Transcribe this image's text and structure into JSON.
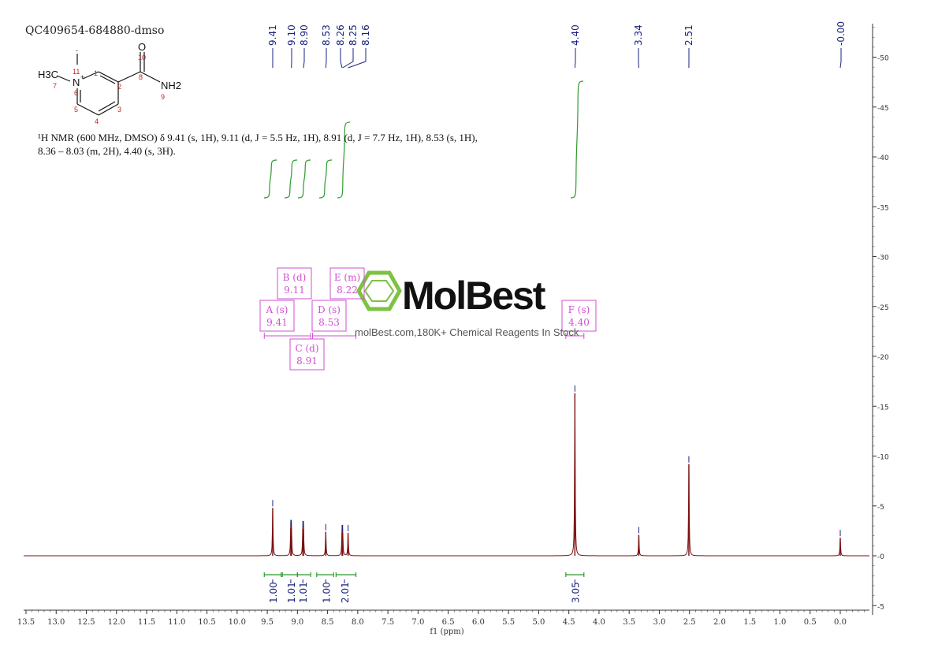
{
  "sample_id": "QC409654-684880-dmso",
  "nmr_description": "¹H NMR (600 MHz, DMSO) δ 9.41 (s, 1H), 9.11 (d, J = 5.5 Hz, 1H), 8.91 (d, J = 7.7 Hz, 1H), 8.53 (s, 1H), 8.36 – 8.03 (m, 2H), 4.40 (s, 3H).",
  "watermark": {
    "brand": "MolBest",
    "tagline": "molBest.com,180K+ Chemical Reagents In Stock"
  },
  "structure": {
    "atoms": [
      "H3C",
      "N",
      "+",
      "I",
      "-",
      "O",
      "NH2"
    ],
    "atom_numbers": [
      "1",
      "2",
      "3",
      "4",
      "5",
      "6",
      "7",
      "8",
      "9",
      "10",
      "11"
    ]
  },
  "colors": {
    "spectrum": "#7b1010",
    "peak_labels": "#1a237e",
    "integral": "#2e9b2e",
    "multiplet_box": "#d24fd2",
    "axis": "#333333",
    "atom_number": "#cc2222"
  },
  "chart_data": {
    "type": "line",
    "xlabel": "f1 (ppm)",
    "x_reversed": true,
    "xlim": [
      13.5,
      -0.5
    ],
    "ylim": [
      -5,
      53
    ],
    "x_ticks": [
      "13.5",
      "13.0",
      "12.5",
      "12.0",
      "11.5",
      "11.0",
      "10.5",
      "10.0",
      "9.5",
      "9.0",
      "8.5",
      "8.0",
      "7.5",
      "7.0",
      "6.5",
      "6.0",
      "5.5",
      "5.0",
      "4.5",
      "4.0",
      "3.5",
      "3.0",
      "2.5",
      "2.0",
      "1.5",
      "1.0",
      "0.5",
      "0.0"
    ],
    "y_ticks": [
      "-5",
      "0",
      "5",
      "10",
      "15",
      "20",
      "25",
      "30",
      "35",
      "40",
      "45",
      "50"
    ],
    "peaks": [
      {
        "ppm": 9.41,
        "height": 4.8
      },
      {
        "ppm": 9.11,
        "height": 2.8
      },
      {
        "ppm": 9.1,
        "height": 2.8
      },
      {
        "ppm": 8.91,
        "height": 2.7
      },
      {
        "ppm": 8.9,
        "height": 2.7
      },
      {
        "ppm": 8.53,
        "height": 2.4
      },
      {
        "ppm": 8.26,
        "height": 2.3
      },
      {
        "ppm": 8.25,
        "height": 2.3
      },
      {
        "ppm": 8.16,
        "height": 2.3
      },
      {
        "ppm": 4.4,
        "height": 16.3
      },
      {
        "ppm": 3.34,
        "height": 2.1
      },
      {
        "ppm": 2.51,
        "height": 9.2
      },
      {
        "ppm": 0.0,
        "height": 1.8
      }
    ],
    "peak_labels": [
      "9.41",
      "9.10",
      "8.90",
      "8.53",
      "8.26",
      "8.25",
      "8.16",
      "4.40",
      "3.34",
      "2.51",
      "-0.00"
    ],
    "peak_label_ppm": [
      9.41,
      9.1,
      8.9,
      8.53,
      8.26,
      8.25,
      8.16,
      4.4,
      3.34,
      2.51,
      0.0
    ],
    "integrals": [
      {
        "label": "1.00",
        "center": 9.41,
        "from": 9.55,
        "to": 9.27
      },
      {
        "label": "1.01",
        "center": 9.11,
        "from": 9.25,
        "to": 9.0
      },
      {
        "label": "1.01",
        "center": 8.91,
        "from": 9.0,
        "to": 8.78
      },
      {
        "label": "1.00",
        "center": 8.53,
        "from": 8.68,
        "to": 8.4
      },
      {
        "label": "2.01",
        "center": 8.22,
        "from": 8.36,
        "to": 8.03
      },
      {
        "label": "3.05",
        "center": 4.4,
        "from": 4.55,
        "to": 4.25
      }
    ],
    "multiplets": [
      {
        "id": "A (s)",
        "shift": "9.41",
        "ppm": 9.41
      },
      {
        "id": "B (d)",
        "shift": "9.11",
        "ppm": 9.11
      },
      {
        "id": "C (d)",
        "shift": "8.91",
        "ppm": 8.91
      },
      {
        "id": "D (s)",
        "shift": "8.53",
        "ppm": 8.53
      },
      {
        "id": "E (m)",
        "shift": "8.22",
        "ppm": 8.22
      },
      {
        "id": "F (s)",
        "shift": "4.40",
        "ppm": 4.4
      }
    ]
  }
}
